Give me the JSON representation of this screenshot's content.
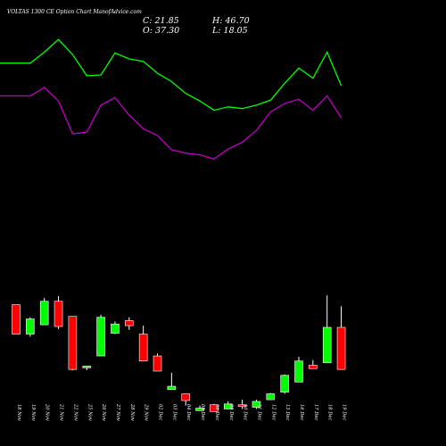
{
  "title": "VOLTAS 1300  CE Option  Chart ManofAdvice.com",
  "ohlc": {
    "close": "C: 21.85",
    "open": "O: 37.30",
    "high": "H: 46.70",
    "low": "L: 18.05"
  },
  "colors": {
    "background": "#000000",
    "up": "#00ff00",
    "down": "#ff0000",
    "line_upper": "#00ff00",
    "line_lower": "#c000c0",
    "text": "#ffffff"
  },
  "chart_data": {
    "type": "candlestick",
    "categories": [
      "18 Nov",
      "19 Nov",
      "20 Nov",
      "21 Nov",
      "22 Nov",
      "25 Nov",
      "26 Nov",
      "27 Nov",
      "28 Nov",
      "29 Nov",
      "02 Dec",
      "03 Dec",
      "04 Dec",
      "05 Dec",
      "06 Dec",
      "09 Dec",
      "10 Dec",
      "11 Dec",
      "12 Dec",
      "13 Dec",
      "16 Dec",
      "17 Dec",
      "18 Dec",
      "19 Dec"
    ],
    "candles": [
      {
        "open": 98,
        "high": 98,
        "low": 63,
        "close": 63
      },
      {
        "open": 63,
        "high": 83,
        "low": 60,
        "close": 81
      },
      {
        "open": 74,
        "high": 106,
        "low": 74,
        "close": 102
      },
      {
        "open": 102,
        "high": 108,
        "low": 69,
        "close": 72
      },
      {
        "open": 84,
        "high": 84,
        "low": 20,
        "close": 21
      },
      {
        "open": 23,
        "high": 25,
        "low": 20,
        "close": 25
      },
      {
        "open": 37,
        "high": 86,
        "low": 37,
        "close": 83
      },
      {
        "open": 64,
        "high": 78,
        "low": 63,
        "close": 75
      },
      {
        "open": 79,
        "high": 83,
        "low": 68,
        "close": 73
      },
      {
        "open": 63,
        "high": 73,
        "low": 35,
        "close": 31
      },
      {
        "open": 37,
        "high": 40,
        "low": 20,
        "close": 19
      },
      {
        "open": -3,
        "high": 17,
        "low": -3,
        "close": 1
      },
      {
        "open": -8,
        "high": -8,
        "low": -22,
        "close": -16
      },
      {
        "open": -28,
        "high": -22,
        "low": -28,
        "close": -25
      },
      {
        "open": -21,
        "high": -20,
        "low": -29,
        "close": -29
      },
      {
        "open": -26,
        "high": -17,
        "low": -26,
        "close": -20
      },
      {
        "open": -21,
        "high": -15,
        "low": -26,
        "close": -22
      },
      {
        "open": -24,
        "high": -15,
        "low": -26,
        "close": -17
      },
      {
        "open": -15,
        "high": -7,
        "low": -15,
        "close": -8
      },
      {
        "open": -6,
        "high": 15,
        "low": -8,
        "close": 14
      },
      {
        "open": 6,
        "high": 36,
        "low": 6,
        "close": 31
      },
      {
        "open": 26,
        "high": 32,
        "low": 22,
        "close": 22
      },
      {
        "open": 29,
        "high": 109,
        "low": 29,
        "close": 71
      },
      {
        "open": 71,
        "high": 96,
        "low": 21,
        "close": 21
      }
    ],
    "line_series": [
      {
        "values": [
          385,
          385,
          398,
          413,
          395,
          370,
          371,
          397,
          390,
          387,
          373,
          363,
          349,
          340,
          329,
          333,
          331,
          335,
          341,
          361,
          379,
          367,
          398,
          358
        ]
      },
      {
        "values": [
          346,
          346,
          356,
          340,
          301,
          303,
          335,
          344,
          323,
          307,
          299,
          282,
          278,
          276,
          271,
          283,
          291,
          305,
          327,
          337,
          342,
          329,
          346,
          320
        ]
      }
    ],
    "ylim": [
      -70,
      460
    ]
  }
}
